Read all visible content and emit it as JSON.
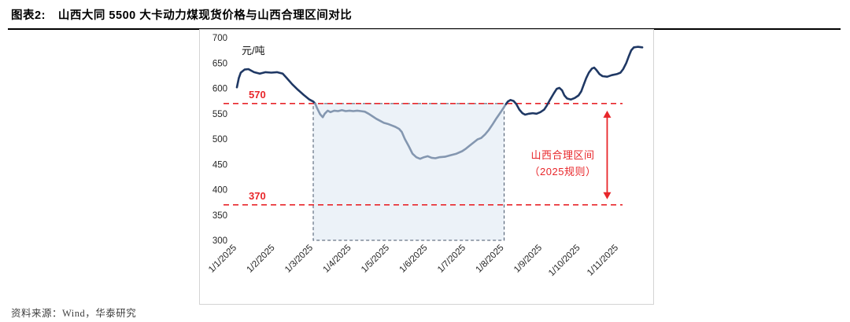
{
  "header": {
    "title_prefix": "图表2:",
    "title": "山西大同 5500 大卡动力煤现货价格与山西合理区间对比"
  },
  "footer": {
    "source": "资料来源：Wind，华泰研究"
  },
  "chart_data": {
    "type": "line",
    "title": "山西大同5500大卡动力煤现货价格与山西合理区间对比",
    "unit_label": "元/吨",
    "ylim": [
      300,
      700
    ],
    "y_ticks": [
      700,
      650,
      600,
      550,
      500,
      450,
      400,
      350,
      300
    ],
    "x_tick_labels": [
      "1/1/2025",
      "1/2/2025",
      "1/3/2025",
      "1/4/2025",
      "1/5/2025",
      "1/6/2025",
      "1/7/2025",
      "1/8/2025",
      "1/9/2025",
      "1/10/2025",
      "1/11/2025"
    ],
    "grid": false,
    "legend": "none",
    "ref_color": "#e8262a",
    "reference_lines": [
      {
        "value": 570,
        "label": "570"
      },
      {
        "value": 370,
        "label": "370"
      }
    ],
    "band": {
      "x_from": 3,
      "x_to": 8,
      "y_from": 300,
      "y_to": 570,
      "fill": "#dde7f3",
      "border": "#44546a"
    },
    "annotation": {
      "line1": "山西合理区间",
      "line2": "（2025规则）"
    },
    "arrow": {
      "x": 10.7,
      "y_from": 556,
      "y_to": 381
    },
    "series": [
      {
        "name": "山西大同5500大卡动力煤现货价格",
        "segments": [
          {
            "color": "#1f3864",
            "points": [
              [
                1.0,
                602
              ],
              [
                1.05,
                620
              ],
              [
                1.1,
                631
              ],
              [
                1.2,
                637
              ],
              [
                1.3,
                638
              ],
              [
                1.45,
                632
              ],
              [
                1.6,
                629
              ],
              [
                1.75,
                632
              ],
              [
                1.9,
                631
              ],
              [
                2.05,
                632
              ],
              [
                2.2,
                629
              ],
              [
                2.3,
                621
              ],
              [
                2.45,
                608
              ],
              [
                2.6,
                597
              ],
              [
                2.75,
                587
              ],
              [
                2.9,
                578
              ],
              [
                3.0,
                574
              ],
              [
                3.05,
                570
              ]
            ]
          },
          {
            "color": "#8497b0",
            "points": [
              [
                3.05,
                570
              ],
              [
                3.1,
                561
              ],
              [
                3.18,
                549
              ],
              [
                3.25,
                543
              ],
              [
                3.3,
                550
              ],
              [
                3.38,
                556
              ],
              [
                3.45,
                553
              ],
              [
                3.55,
                556
              ],
              [
                3.65,
                555
              ],
              [
                3.75,
                557
              ],
              [
                3.85,
                555
              ],
              [
                3.95,
                556
              ],
              [
                4.05,
                555
              ],
              [
                4.15,
                556
              ],
              [
                4.25,
                555
              ],
              [
                4.35,
                554
              ],
              [
                4.45,
                550
              ],
              [
                4.55,
                545
              ],
              [
                4.65,
                540
              ],
              [
                4.75,
                536
              ],
              [
                4.85,
                532
              ],
              [
                4.95,
                530
              ],
              [
                5.05,
                527
              ],
              [
                5.15,
                524
              ],
              [
                5.25,
                520
              ],
              [
                5.32,
                514
              ],
              [
                5.4,
                500
              ],
              [
                5.5,
                486
              ],
              [
                5.6,
                471
              ],
              [
                5.7,
                464
              ],
              [
                5.8,
                461
              ],
              [
                5.9,
                464
              ],
              [
                6.0,
                466
              ],
              [
                6.1,
                463
              ],
              [
                6.2,
                462
              ],
              [
                6.3,
                464
              ],
              [
                6.45,
                465
              ],
              [
                6.6,
                468
              ],
              [
                6.75,
                471
              ],
              [
                6.9,
                476
              ],
              [
                7.0,
                481
              ],
              [
                7.1,
                487
              ],
              [
                7.2,
                493
              ],
              [
                7.3,
                499
              ],
              [
                7.4,
                502
              ],
              [
                7.5,
                509
              ],
              [
                7.6,
                518
              ],
              [
                7.7,
                529
              ],
              [
                7.8,
                541
              ],
              [
                7.9,
                552
              ],
              [
                8.0,
                563
              ],
              [
                8.05,
                569
              ]
            ]
          },
          {
            "color": "#1f3864",
            "points": [
              [
                8.05,
                569
              ],
              [
                8.1,
                574
              ],
              [
                8.17,
                577
              ],
              [
                8.25,
                575
              ],
              [
                8.32,
                569
              ],
              [
                8.4,
                558
              ],
              [
                8.48,
                551
              ],
              [
                8.55,
                548
              ],
              [
                8.65,
                550
              ],
              [
                8.75,
                551
              ],
              [
                8.85,
                550
              ],
              [
                8.95,
                553
              ],
              [
                9.05,
                558
              ],
              [
                9.12,
                566
              ],
              [
                9.2,
                577
              ],
              [
                9.3,
                590
              ],
              [
                9.38,
                599
              ],
              [
                9.45,
                601
              ],
              [
                9.52,
                596
              ],
              [
                9.58,
                586
              ],
              [
                9.65,
                580
              ],
              [
                9.75,
                578
              ],
              [
                9.85,
                581
              ],
              [
                9.95,
                586
              ],
              [
                10.02,
                594
              ],
              [
                10.08,
                606
              ],
              [
                10.15,
                620
              ],
              [
                10.22,
                631
              ],
              [
                10.3,
                639
              ],
              [
                10.36,
                641
              ],
              [
                10.42,
                636
              ],
              [
                10.5,
                628
              ],
              [
                10.58,
                624
              ],
              [
                10.7,
                623
              ],
              [
                10.82,
                626
              ],
              [
                10.95,
                628
              ],
              [
                11.05,
                631
              ],
              [
                11.12,
                638
              ],
              [
                11.2,
                650
              ],
              [
                11.27,
                664
              ],
              [
                11.33,
                675
              ],
              [
                11.4,
                681
              ],
              [
                11.5,
                682
              ],
              [
                11.62,
                681
              ]
            ]
          }
        ]
      }
    ]
  }
}
